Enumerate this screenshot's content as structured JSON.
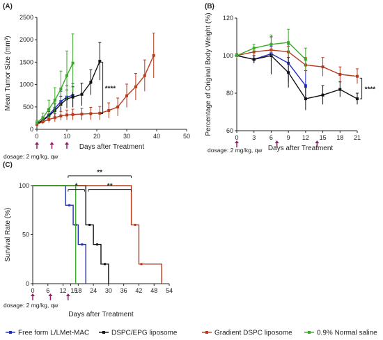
{
  "arrow_color": "#9b1a6e",
  "chart_data": [
    {
      "id": "A",
      "type": "line",
      "panel_label": "(A)",
      "xlabel": "Days after Treatment",
      "ylabel": "Mean Tumor Size (mm³)",
      "xlim": [
        0,
        50
      ],
      "ylim": [
        0,
        2500
      ],
      "xticks": [
        0,
        10,
        20,
        30,
        40,
        50
      ],
      "yticks": [
        0,
        500,
        1000,
        1500,
        2000,
        2500
      ],
      "dosage_note": "dosage: 2 mg/kg, qw",
      "dose_days": [
        0,
        5,
        10
      ],
      "significance": [
        {
          "label": "****",
          "x": 22,
          "y1": 1500,
          "y2": 350
        }
      ],
      "series": [
        {
          "key": "free",
          "x": [
            0,
            2,
            4,
            6,
            8,
            10,
            12
          ],
          "y": [
            130,
            210,
            320,
            470,
            620,
            720,
            760
          ],
          "err": [
            40,
            70,
            120,
            200,
            230,
            250,
            260
          ]
        },
        {
          "key": "epg",
          "x": [
            0,
            2,
            4,
            6,
            8,
            10,
            12,
            15,
            18,
            21
          ],
          "y": [
            120,
            200,
            300,
            420,
            560,
            680,
            720,
            780,
            1050,
            1520
          ],
          "err": [
            40,
            60,
            100,
            150,
            180,
            200,
            230,
            250,
            280,
            420
          ]
        },
        {
          "key": "grad",
          "x": [
            0,
            2,
            4,
            6,
            8,
            10,
            12,
            15,
            18,
            21,
            24,
            27,
            30,
            33,
            36,
            39
          ],
          "y": [
            110,
            170,
            220,
            260,
            300,
            320,
            330,
            340,
            350,
            360,
            420,
            500,
            750,
            950,
            1200,
            1650
          ],
          "err": [
            30,
            50,
            70,
            90,
            100,
            110,
            120,
            130,
            140,
            150,
            170,
            200,
            260,
            300,
            350,
            500
          ]
        },
        {
          "key": "saline",
          "x": [
            0,
            2,
            4,
            6,
            8,
            10,
            12
          ],
          "y": [
            150,
            260,
            450,
            650,
            900,
            1200,
            1480
          ],
          "err": [
            50,
            100,
            200,
            280,
            400,
            550,
            650
          ]
        }
      ]
    },
    {
      "id": "B",
      "type": "line",
      "panel_label": "(B)",
      "xlabel": "Days after Treatment",
      "ylabel": "Percentage of Original Body Weight (%)",
      "xlim": [
        0,
        21
      ],
      "ylim": [
        60,
        120
      ],
      "xticks": [
        0,
        3,
        6,
        9,
        12,
        15,
        18,
        21
      ],
      "yticks": [
        60,
        80,
        100,
        120
      ],
      "dosage_note": "dosage: 2 mg/kg, qw",
      "dose_days": [
        0,
        7,
        14
      ],
      "significance": [
        {
          "label": "****",
          "x": 21.8,
          "y1": 88,
          "y2": 77
        }
      ],
      "series": [
        {
          "key": "free",
          "x": [
            0,
            3,
            6,
            9,
            12
          ],
          "y": [
            100,
            98,
            101,
            96,
            84
          ],
          "err": [
            1,
            2,
            4,
            10,
            8
          ]
        },
        {
          "key": "epg",
          "x": [
            0,
            3,
            6,
            9,
            12,
            15,
            18,
            21
          ],
          "y": [
            100,
            98,
            100,
            91,
            77,
            79,
            82,
            77
          ],
          "err": [
            1,
            2,
            10,
            8,
            6,
            5,
            4,
            3
          ]
        },
        {
          "key": "grad",
          "x": [
            0,
            3,
            6,
            9,
            12,
            15,
            18,
            21
          ],
          "y": [
            100,
            102,
            103,
            102,
            95,
            94,
            90,
            89
          ],
          "err": [
            1,
            2,
            3,
            3,
            4,
            5,
            4,
            4
          ]
        },
        {
          "key": "saline",
          "x": [
            0,
            3,
            6,
            9,
            12
          ],
          "y": [
            100,
            104,
            106,
            107,
            98
          ],
          "err": [
            1,
            2,
            5,
            7,
            6
          ]
        }
      ]
    },
    {
      "id": "C",
      "type": "line",
      "panel_label": "(C)",
      "xlabel": "Days after Treatment",
      "ylabel": "Survival Rate (%)",
      "xlim": [
        0,
        54
      ],
      "ylim": [
        0,
        100
      ],
      "xticks": [
        0,
        6,
        12,
        18,
        24,
        30,
        36,
        42,
        48,
        54
      ],
      "extra_xticks": [
        15
      ],
      "yticks": [
        0,
        50,
        100
      ],
      "dosage_note": "dosage: 2 mg/kg, qw",
      "dose_days": [
        0,
        7,
        14
      ],
      "significance": [
        {
          "label": "**",
          "x1": 14,
          "x2": 39,
          "y": 110
        },
        {
          "label": "*",
          "x1": 14,
          "x2": 20.5,
          "y": 96
        },
        {
          "label": "**",
          "x1": 22,
          "x2": 39,
          "y": 96
        }
      ],
      "series": [
        {
          "key": "free",
          "steps": [
            [
              0,
              100
            ],
            [
              13,
              100
            ],
            [
              13,
              80
            ],
            [
              16,
              80
            ],
            [
              16,
              60
            ],
            [
              18,
              60
            ],
            [
              18,
              40
            ],
            [
              21,
              40
            ],
            [
              21,
              0
            ]
          ],
          "censor": [
            [
              14.5,
              80
            ],
            [
              17,
              60
            ],
            [
              19.5,
              40
            ]
          ]
        },
        {
          "key": "epg",
          "steps": [
            [
              0,
              100
            ],
            [
              21,
              100
            ],
            [
              21,
              60
            ],
            [
              24,
              60
            ],
            [
              24,
              40
            ],
            [
              27,
              40
            ],
            [
              27,
              20
            ],
            [
              30,
              20
            ],
            [
              30,
              0
            ]
          ],
          "censor": [
            [
              22.5,
              60
            ],
            [
              25.5,
              40
            ],
            [
              28.5,
              20
            ]
          ]
        },
        {
          "key": "grad",
          "steps": [
            [
              0,
              100
            ],
            [
              39,
              100
            ],
            [
              39,
              60
            ],
            [
              42,
              60
            ],
            [
              42,
              20
            ],
            [
              51,
              20
            ],
            [
              51,
              0
            ]
          ],
          "censor": [
            [
              40.5,
              60
            ],
            [
              43,
              20
            ]
          ]
        },
        {
          "key": "saline",
          "steps": [
            [
              0,
              100
            ],
            [
              17,
              100
            ],
            [
              17,
              0
            ]
          ],
          "censor": []
        }
      ]
    }
  ],
  "series_style": {
    "free": {
      "name": "Free form L/LMet-MAC",
      "color": "#1f2fbf"
    },
    "epg": {
      "name": "DSPC/EPG liposome",
      "color": "#111111"
    },
    "grad": {
      "name": "Gradient DSPC liposome",
      "color": "#b83a1c"
    },
    "saline": {
      "name": "0.9% Normal saline",
      "color": "#3aaa28"
    }
  },
  "legend_order": [
    "free",
    "epg",
    "grad",
    "saline"
  ]
}
